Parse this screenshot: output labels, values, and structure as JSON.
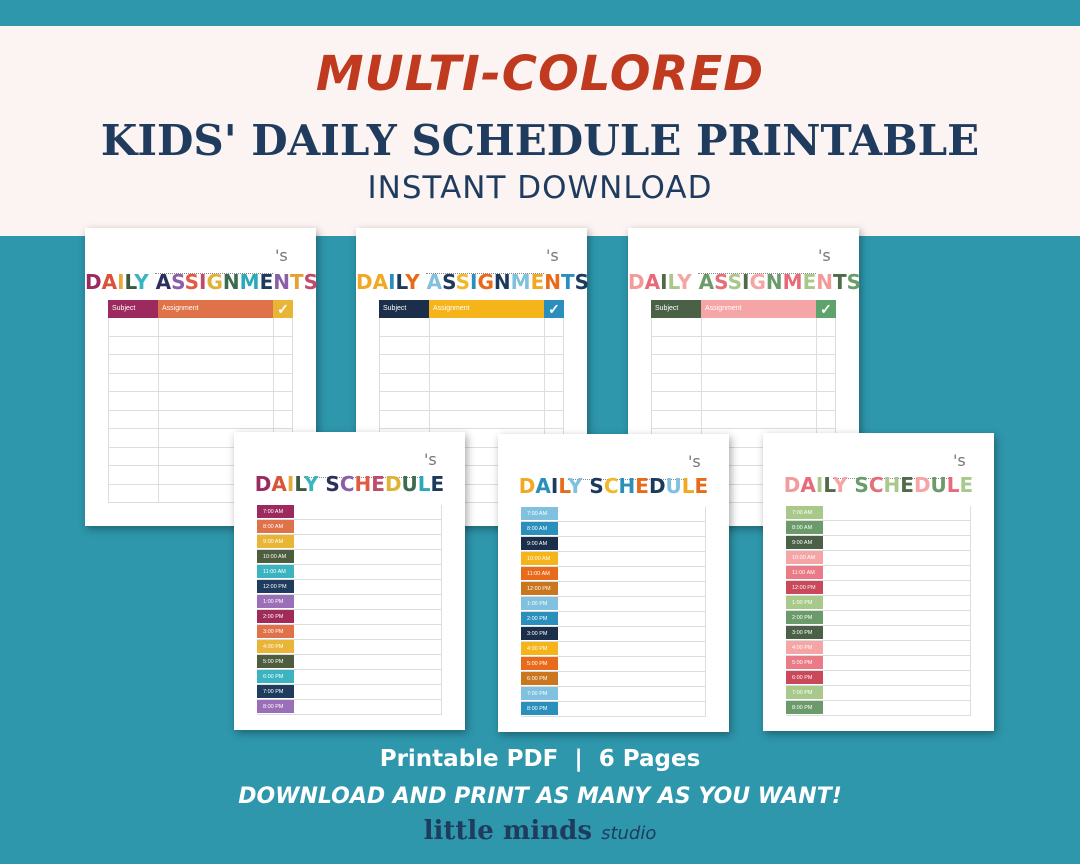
{
  "header": {
    "script_title": "MULTI-COLORED",
    "main_title": "KIDS' DAILY SCHEDULE PRINTABLE",
    "subtitle": "INSTANT DOWNLOAD"
  },
  "assignment_sheets": [
    {
      "name_suffix": "'s",
      "title_words": [
        "DAILY",
        "ASSIGNMENTS"
      ],
      "title_colors": [
        "#9c2a5e",
        "#d9533a",
        "#e8a93a",
        "#3b5a3f",
        "#3bb4c1",
        "#2a2f5c",
        "#8b5fa8",
        "#e15a44",
        "#c04a6a",
        "#e0b236",
        "#3d6b4f",
        "#2aa9b8",
        "#1b3a5c",
        "#8b5fa8",
        "#e5a230",
        "#c04a6a"
      ],
      "headers": [
        "Subject",
        "Assignment",
        "✓"
      ],
      "header_colors": [
        "#9c2a5e",
        "#e0724a",
        "#e8b536"
      ]
    },
    {
      "name_suffix": "'s",
      "title_words": [
        "DAILY",
        "ASSIGNMENTS"
      ],
      "title_colors": [
        "#f1a823",
        "#f1a823",
        "#2b8fbd",
        "#1b3a5c",
        "#e86a1b",
        "#7fc1de",
        "#1b3a5c",
        "#f1b82a",
        "#2b8fbd",
        "#e86a1b",
        "#1b3a5c",
        "#7fc1de",
        "#f1a823",
        "#e86a1b",
        "#2b8fbd",
        "#1b3a5c"
      ],
      "headers": [
        "Subject",
        "Assignment",
        "✓"
      ],
      "header_colors": [
        "#1b2f4a",
        "#f4b41a",
        "#2b8fbd"
      ]
    },
    {
      "name_suffix": "'s",
      "title_words": [
        "DAILY",
        "ASSIGNMENTS"
      ],
      "title_colors": [
        "#f29b9b",
        "#e86a7a",
        "#4f6b4a",
        "#a8c98a",
        "#f5a5a5",
        "#6b9b6a",
        "#e26f7a",
        "#a8c98a",
        "#4f6b4a",
        "#f5a5a5",
        "#6b9b6a",
        "#e86a7a",
        "#a8c98a",
        "#f29b9b",
        "#4f6b4a",
        "#6b9b6a"
      ],
      "headers": [
        "Subject",
        "Assignment",
        "✓"
      ],
      "header_colors": [
        "#4a6147",
        "#f5a5a5",
        "#5ea36b"
      ]
    }
  ],
  "schedule_sheets": [
    {
      "name_suffix": "'s",
      "title_words": [
        "DAILY",
        "SCHEDULE"
      ],
      "title_colors": [
        "#9c2a5e",
        "#d9533a",
        "#e8a93a",
        "#3b5a3f",
        "#3bb4c1",
        "#2a2f5c",
        "#8b5fa8",
        "#e15a44",
        "#c04a6a",
        "#e0b236",
        "#3d6b4f",
        "#2aa9b8",
        "#1b3a5c"
      ],
      "times": [
        "7:00 AM",
        "8:00 AM",
        "9:00 AM",
        "10:00 AM",
        "11:00 AM",
        "12:00 PM",
        "1:00 PM",
        "2:00 PM",
        "3:00 PM",
        "4:00 PM",
        "5:00 PM",
        "6:00 PM",
        "7:00 PM",
        "8:00 PM"
      ],
      "time_colors": [
        "#9c2a5e",
        "#e0724a",
        "#e8b536",
        "#4f5d3f",
        "#3bb4c1",
        "#1f3b5e",
        "#9b6fb8",
        "#a02a5a",
        "#e0724a",
        "#e8b536",
        "#4f5d3f",
        "#3bb4c1",
        "#1f3b5e",
        "#9b6fb8"
      ]
    },
    {
      "name_suffix": "'s",
      "title_words": [
        "DAILY",
        "SCHEDULE"
      ],
      "title_colors": [
        "#f1a823",
        "#2b8fbd",
        "#1b3a5c",
        "#e86a1b",
        "#7fc1de",
        "#1b3a5c",
        "#f1b82a",
        "#2b8fbd",
        "#e86a1b",
        "#1b3a5c",
        "#7fc1de",
        "#f1a823",
        "#e86a1b"
      ],
      "times": [
        "7:00 AM",
        "8:00 AM",
        "9:00 AM",
        "10:00 AM",
        "11:00 AM",
        "12:00 PM",
        "1:00 PM",
        "2:00 PM",
        "3:00 PM",
        "4:00 PM",
        "5:00 PM",
        "6:00 PM",
        "7:00 PM",
        "8:00 PM"
      ],
      "time_colors": [
        "#7fc1de",
        "#2b8fbd",
        "#1b2f4a",
        "#f4b41a",
        "#e86a1b",
        "#c9761e",
        "#7fc1de",
        "#2b8fbd",
        "#1b2f4a",
        "#f4b41a",
        "#e86a1b",
        "#c9761e",
        "#7fc1de",
        "#2b8fbd"
      ]
    },
    {
      "name_suffix": "'s",
      "title_words": [
        "DAILY",
        "SCHEDULE"
      ],
      "title_colors": [
        "#f29b9b",
        "#e86a7a",
        "#a8c98a",
        "#4f6b4a",
        "#f5a5a5",
        "#6b9b6a",
        "#e26f7a",
        "#a8c98a",
        "#4f6b4a",
        "#f5a5a5",
        "#6b9b6a",
        "#e86a7a",
        "#a8c98a"
      ],
      "times": [
        "7:00 AM",
        "8:00 AM",
        "9:00 AM",
        "10:00 AM",
        "11:00 AM",
        "12:00 PM",
        "1:00 PM",
        "2:00 PM",
        "3:00 PM",
        "4:00 PM",
        "5:00 PM",
        "6:00 PM",
        "7:00 PM",
        "8:00 PM"
      ],
      "time_colors": [
        "#a8c98a",
        "#6b9b6a",
        "#4a6147",
        "#f5a5a5",
        "#ea7a86",
        "#c9485a",
        "#a8c98a",
        "#6b9b6a",
        "#4a6147",
        "#f5a5a5",
        "#ea7a86",
        "#c9485a",
        "#a8c98a",
        "#6b9b6a"
      ]
    }
  ],
  "footer": {
    "info": "Printable PDF  |  6 Pages",
    "tagline": "DOWNLOAD AND PRINT AS MANY AS YOU WANT!",
    "brand_main": "little minds",
    "brand_script": "studio"
  }
}
